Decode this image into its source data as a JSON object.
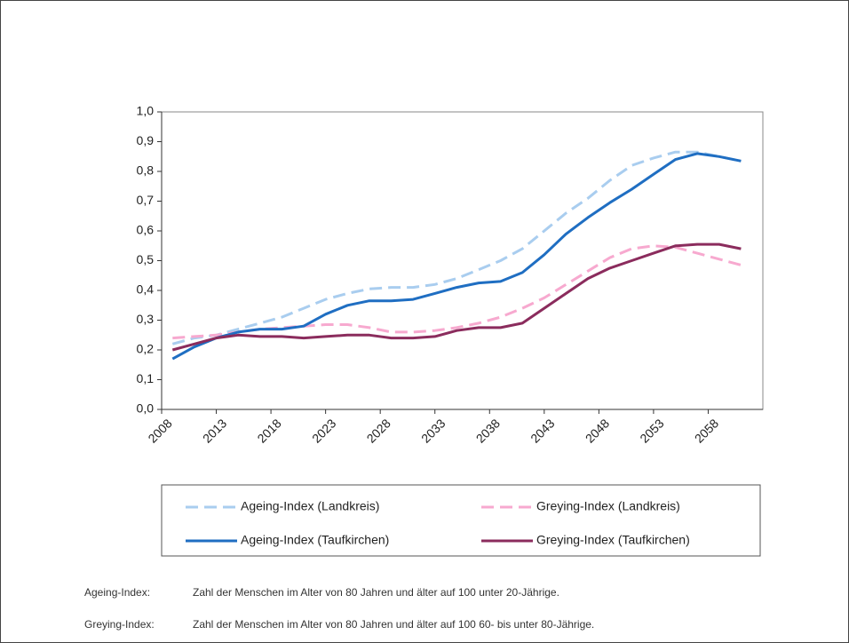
{
  "chart_data": {
    "type": "line",
    "x": [
      2009,
      2011,
      2013,
      2015,
      2017,
      2019,
      2021,
      2023,
      2025,
      2027,
      2029,
      2031,
      2033,
      2035,
      2037,
      2039,
      2041,
      2043,
      2045,
      2047,
      2049,
      2051,
      2053,
      2055,
      2057,
      2059,
      2061
    ],
    "series": [
      {
        "name": "Ageing-Index (Landkreis)",
        "color": "#a9cdef",
        "dashed": true,
        "values": [
          0.22,
          0.24,
          0.25,
          0.27,
          0.29,
          0.31,
          0.34,
          0.37,
          0.39,
          0.405,
          0.41,
          0.41,
          0.42,
          0.44,
          0.47,
          0.5,
          0.54,
          0.6,
          0.66,
          0.71,
          0.77,
          0.82,
          0.845,
          0.865,
          0.865,
          0.85,
          0.835
        ]
      },
      {
        "name": "Greying-Index (Landkreis)",
        "color": "#f7a9cf",
        "dashed": true,
        "values": [
          0.24,
          0.245,
          0.25,
          0.26,
          0.27,
          0.275,
          0.28,
          0.285,
          0.285,
          0.275,
          0.26,
          0.26,
          0.265,
          0.275,
          0.29,
          0.31,
          0.34,
          0.375,
          0.42,
          0.465,
          0.51,
          0.54,
          0.55,
          0.545,
          0.525,
          0.505,
          0.485
        ]
      },
      {
        "name": "Ageing-Index (Taufkirchen)",
        "color": "#1f6ec2",
        "dashed": false,
        "values": [
          0.17,
          0.21,
          0.24,
          0.26,
          0.27,
          0.27,
          0.28,
          0.32,
          0.35,
          0.365,
          0.365,
          0.37,
          0.39,
          0.41,
          0.425,
          0.43,
          0.46,
          0.52,
          0.59,
          0.645,
          0.695,
          0.74,
          0.79,
          0.84,
          0.86,
          0.85,
          0.835
        ]
      },
      {
        "name": "Greying-Index (Taufkirchen)",
        "color": "#8b2c5d",
        "dashed": false,
        "values": [
          0.2,
          0.22,
          0.24,
          0.25,
          0.245,
          0.245,
          0.24,
          0.245,
          0.25,
          0.25,
          0.24,
          0.24,
          0.245,
          0.265,
          0.275,
          0.275,
          0.29,
          0.34,
          0.39,
          0.44,
          0.475,
          0.5,
          0.525,
          0.55,
          0.555,
          0.555,
          0.54
        ]
      }
    ],
    "xlim": [
      2008,
      2063
    ],
    "xticks": [
      2008,
      2013,
      2018,
      2023,
      2028,
      2033,
      2038,
      2043,
      2048,
      2053,
      2058
    ],
    "ylim": [
      0,
      1
    ],
    "yticks": [
      {
        "value": 0,
        "label": "0,0"
      },
      {
        "value": 0.1,
        "label": "0,1"
      },
      {
        "value": 0.2,
        "label": "0,2"
      },
      {
        "value": 0.3,
        "label": "0,3"
      },
      {
        "value": 0.4,
        "label": "0,4"
      },
      {
        "value": 0.5,
        "label": "0,5"
      },
      {
        "value": 0.6,
        "label": "0,6"
      },
      {
        "value": 0.7,
        "label": "0,7"
      },
      {
        "value": 0.8,
        "label": "0,8"
      },
      {
        "value": 0.9,
        "label": "0,9"
      },
      {
        "value": 1,
        "label": "1,0"
      }
    ],
    "grid": false,
    "notes": [
      {
        "term": "Ageing-Index:",
        "text": "Zahl der Menschen im Alter von 80 Jahren und älter auf 100 unter 20-Jährige."
      },
      {
        "term": "Greying-Index:",
        "text": "Zahl der Menschen im Alter von 80 Jahren und älter auf 100 60- bis unter 80-Jährige."
      }
    ]
  }
}
